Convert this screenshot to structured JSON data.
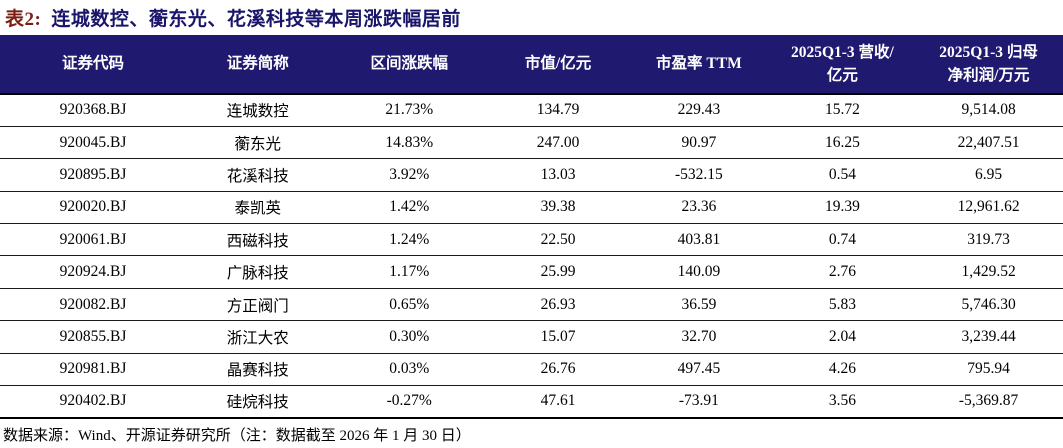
{
  "title": {
    "label": "表2:",
    "text": "连城数控、蘅东光、花溪科技等本周涨跌幅居前"
  },
  "colors": {
    "header_bg": "#1f1a70",
    "title_navy": "#1a156b",
    "label_red": "#7a1e14",
    "header_text": "#ffffff"
  },
  "table": {
    "headers": [
      {
        "lines": [
          "证券代码"
        ]
      },
      {
        "lines": [
          "证券简称"
        ]
      },
      {
        "lines": [
          "区间涨跌幅"
        ]
      },
      {
        "lines": [
          "市值/亿元"
        ]
      },
      {
        "lines": [
          "市盈率 TTM"
        ]
      },
      {
        "lines": [
          "2025Q1-3 营收/",
          "亿元"
        ]
      },
      {
        "lines": [
          "2025Q1-3 归母",
          "净利润/万元"
        ]
      }
    ],
    "col_widths": [
      "17.5%",
      "13.5%",
      "15%",
      "13%",
      "13.5%",
      "13.5%",
      "14%"
    ],
    "rows": [
      [
        "920368.BJ",
        "连城数控",
        "21.73%",
        "134.79",
        "229.43",
        "15.72",
        "9,514.08"
      ],
      [
        "920045.BJ",
        "蘅东光",
        "14.83%",
        "247.00",
        "90.97",
        "16.25",
        "22,407.51"
      ],
      [
        "920895.BJ",
        "花溪科技",
        "3.92%",
        "13.03",
        "-532.15",
        "0.54",
        "6.95"
      ],
      [
        "920020.BJ",
        "泰凯英",
        "1.42%",
        "39.38",
        "23.36",
        "19.39",
        "12,961.62"
      ],
      [
        "920061.BJ",
        "西磁科技",
        "1.24%",
        "22.50",
        "403.81",
        "0.74",
        "319.73"
      ],
      [
        "920924.BJ",
        "广脉科技",
        "1.17%",
        "25.99",
        "140.09",
        "2.76",
        "1,429.52"
      ],
      [
        "920082.BJ",
        "方正阀门",
        "0.65%",
        "26.93",
        "36.59",
        "5.83",
        "5,746.30"
      ],
      [
        "920855.BJ",
        "浙江大农",
        "0.30%",
        "15.07",
        "32.70",
        "2.04",
        "3,239.44"
      ],
      [
        "920981.BJ",
        "晶赛科技",
        "0.03%",
        "26.76",
        "497.45",
        "4.26",
        "795.94"
      ],
      [
        "920402.BJ",
        "硅烷科技",
        "-0.27%",
        "47.61",
        "-73.91",
        "3.56",
        "-5,369.87"
      ]
    ]
  },
  "footer": {
    "source_note": "数据来源：Wind、开源证券研究所（注：数据截至 2026 年 1 月 30 日）"
  }
}
